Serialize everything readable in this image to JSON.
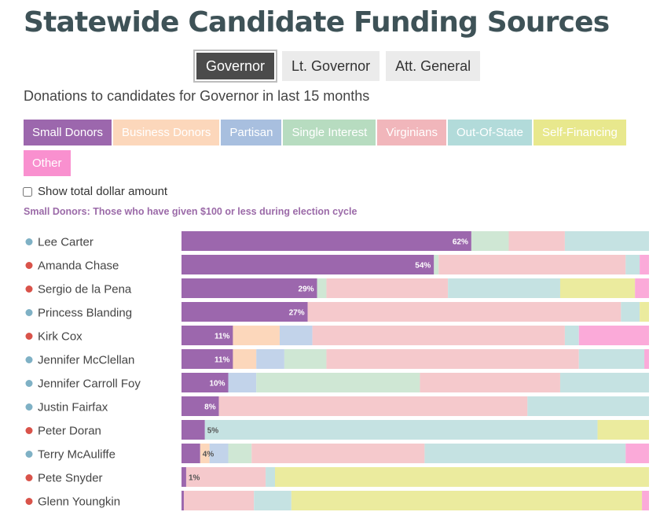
{
  "title": "Statewide Candidate Funding Sources",
  "offices": [
    {
      "label": "Governor",
      "active": true
    },
    {
      "label": "Lt. Governor",
      "active": false
    },
    {
      "label": "Att. General",
      "active": false
    }
  ],
  "subtitle": "Donations to candidates for Governor in last 15 months",
  "categories": [
    {
      "label": "Small Donors",
      "color": "#9c67ad",
      "selected": true
    },
    {
      "label": "Business Donors",
      "color": "#fcd7bb",
      "selected": false
    },
    {
      "label": "Partisan",
      "color": "#a8bfdf",
      "selected": false
    },
    {
      "label": "Single Interest",
      "color": "#b7dcc0",
      "selected": false
    },
    {
      "label": "Virginians",
      "color": "#f1b6bb",
      "selected": false
    },
    {
      "label": "Out-Of-State",
      "color": "#b2dbda",
      "selected": false
    },
    {
      "label": "Self-Financing",
      "color": "#e8e88d",
      "selected": false
    },
    {
      "label": "Other",
      "color": "#f990cf",
      "selected": false
    }
  ],
  "show_total_label": "Show total dollar amount",
  "show_total_checked": false,
  "category_description": "Small Donors: Those who have given $100 or less during election cycle",
  "party_colors": {
    "D": "#7fb1c5",
    "R": "#d9534a"
  },
  "chart_data": {
    "type": "bar",
    "orientation": "horizontal",
    "stacked": true,
    "normalized_to_percent": true,
    "series_names": [
      "Small Donors",
      "Business Donors",
      "Partisan",
      "Single Interest",
      "Virginians",
      "Out-Of-State",
      "Self-Financing",
      "Other"
    ],
    "series_colors": [
      "#9c67ad",
      "#fcd7bb",
      "#c2d3ea",
      "#cfe7d4",
      "#f5c9cc",
      "#c5e2e2",
      "#ebeb9e",
      "#fbaad9"
    ],
    "candidates": [
      {
        "name": "Lee Carter",
        "party": "D",
        "label": "62%",
        "values": [
          62,
          0,
          0,
          8,
          12,
          18,
          0,
          0
        ]
      },
      {
        "name": "Amanda Chase",
        "party": "R",
        "label": "54%",
        "values": [
          54,
          0,
          0,
          1,
          40,
          3,
          0,
          2
        ]
      },
      {
        "name": "Sergio de la Pena",
        "party": "R",
        "label": "29%",
        "values": [
          29,
          0,
          0,
          2,
          26,
          24,
          16,
          3
        ]
      },
      {
        "name": "Princess Blanding",
        "party": "D",
        "label": "27%",
        "values": [
          27,
          0,
          0,
          0,
          67,
          4,
          2,
          0
        ]
      },
      {
        "name": "Kirk Cox",
        "party": "R",
        "label": "11%",
        "values": [
          11,
          10,
          7,
          0,
          54,
          3,
          0,
          15
        ]
      },
      {
        "name": "Jennifer McClellan",
        "party": "D",
        "label": "11%",
        "values": [
          11,
          5,
          6,
          9,
          54,
          14,
          0,
          1
        ]
      },
      {
        "name": "Jennifer Carroll Foy",
        "party": "D",
        "label": "10%",
        "values": [
          10,
          0,
          6,
          35,
          30,
          19,
          0,
          0
        ]
      },
      {
        "name": "Justin Fairfax",
        "party": "D",
        "label": "8%",
        "values": [
          8,
          0,
          0,
          0,
          66,
          26,
          0,
          0
        ]
      },
      {
        "name": "Peter Doran",
        "party": "R",
        "label": "5%",
        "values": [
          5,
          0,
          0,
          0,
          0,
          84,
          11,
          0
        ]
      },
      {
        "name": "Terry McAuliffe",
        "party": "D",
        "label": "4%",
        "values": [
          4,
          2,
          4,
          5,
          37,
          43,
          0,
          5
        ]
      },
      {
        "name": "Pete Snyder",
        "party": "R",
        "label": "1%",
        "values": [
          1,
          0,
          0,
          0,
          17,
          2,
          80,
          0
        ]
      },
      {
        "name": "Glenn Youngkin",
        "party": "R",
        "label": "",
        "values": [
          0.5,
          0,
          0,
          0,
          15,
          8,
          75,
          1.5
        ]
      }
    ]
  }
}
